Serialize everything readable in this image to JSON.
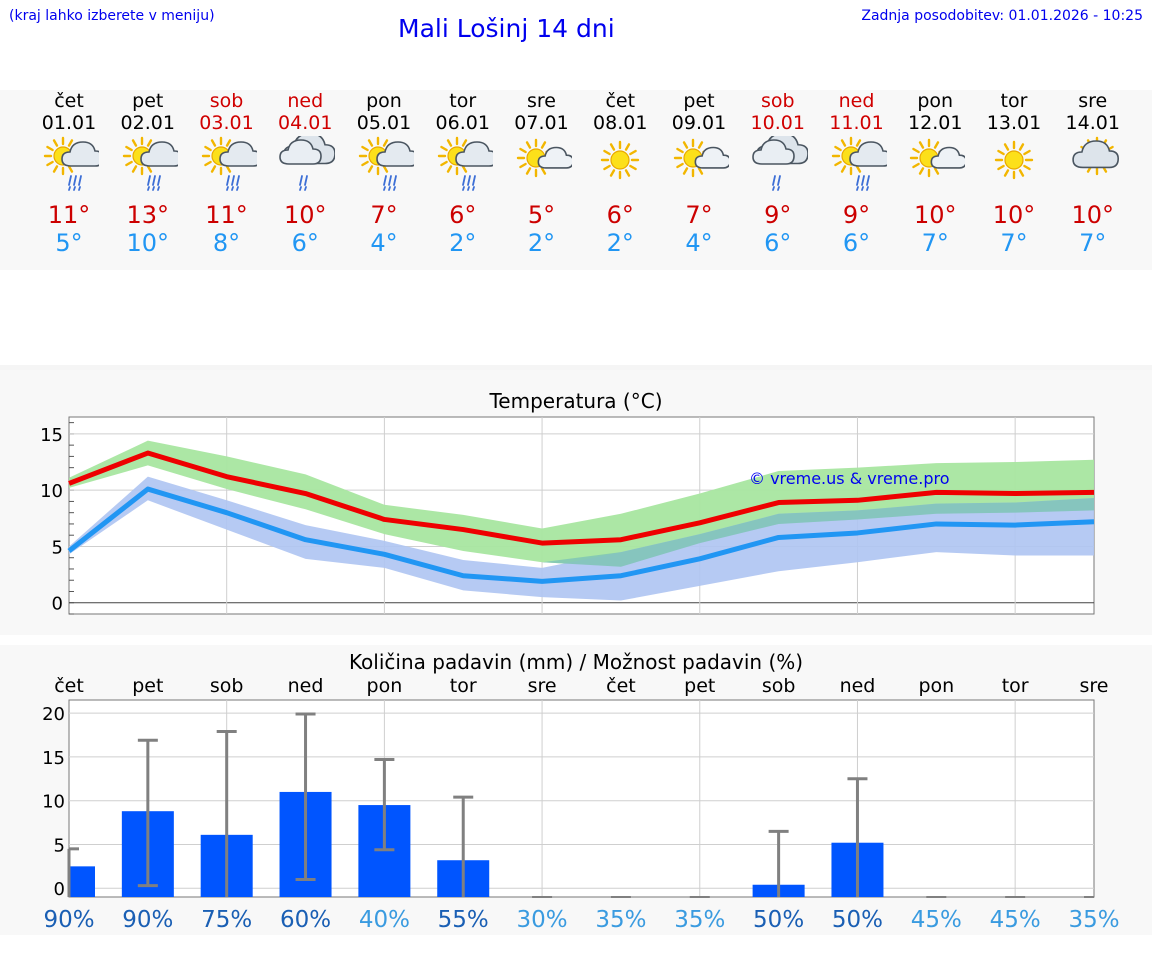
{
  "header": {
    "hint": "(kraj lahko izberete v meniju)",
    "title": "Mali Lošinj 14 dni",
    "updated": "Zadnja posodobitev: 01.01.2026 - 10:25"
  },
  "days": [
    {
      "name": "čet",
      "date": "01.01",
      "weekend": false,
      "icon": "sun-cloud-rain-icon",
      "max": "11°",
      "min": "5°"
    },
    {
      "name": "pet",
      "date": "02.01",
      "weekend": false,
      "icon": "sun-cloud-rain-icon",
      "max": "13°",
      "min": "10°"
    },
    {
      "name": "sob",
      "date": "03.01",
      "weekend": true,
      "icon": "sun-cloud-rain-icon",
      "max": "11°",
      "min": "8°"
    },
    {
      "name": "ned",
      "date": "04.01",
      "weekend": true,
      "icon": "cloud-rain-icon",
      "max": "10°",
      "min": "6°"
    },
    {
      "name": "pon",
      "date": "05.01",
      "weekend": false,
      "icon": "sun-cloud-rain-icon",
      "max": "7°",
      "min": "4°"
    },
    {
      "name": "tor",
      "date": "06.01",
      "weekend": false,
      "icon": "sun-cloud-rain-icon",
      "max": "6°",
      "min": "2°"
    },
    {
      "name": "sre",
      "date": "07.01",
      "weekend": false,
      "icon": "sun-small-cloud-icon",
      "max": "5°",
      "min": "2°"
    },
    {
      "name": "čet",
      "date": "08.01",
      "weekend": false,
      "icon": "sun-icon",
      "max": "6°",
      "min": "2°"
    },
    {
      "name": "pet",
      "date": "09.01",
      "weekend": false,
      "icon": "sun-small-cloud-icon",
      "max": "7°",
      "min": "4°"
    },
    {
      "name": "sob",
      "date": "10.01",
      "weekend": true,
      "icon": "cloud-rain-icon",
      "max": "9°",
      "min": "6°"
    },
    {
      "name": "ned",
      "date": "11.01",
      "weekend": true,
      "icon": "sun-cloud-rain-icon",
      "max": "9°",
      "min": "6°"
    },
    {
      "name": "pon",
      "date": "12.01",
      "weekend": false,
      "icon": "sun-small-cloud-icon",
      "max": "10°",
      "min": "7°"
    },
    {
      "name": "tor",
      "date": "13.01",
      "weekend": false,
      "icon": "sun-icon",
      "max": "10°",
      "min": "7°"
    },
    {
      "name": "sre",
      "date": "14.01",
      "weekend": false,
      "icon": "sun-cloud-icon",
      "max": "10°",
      "min": "7°"
    }
  ],
  "colors": {
    "max_line": "#ee0000",
    "min_line": "#2196f3",
    "max_band": "#a8e6a0",
    "min_band": "#aec4f2",
    "overlap_band": "#7fc4b6",
    "bar": "#0055ff",
    "whisker": "#808080",
    "pct_dark": "#1a5fb4",
    "pct_light": "#3a9be0"
  },
  "chart_data": [
    {
      "type": "line",
      "title": "Temperatura (°C)",
      "watermark": "© vreme.us & vreme.pro",
      "ylim": [
        -1,
        16.5
      ],
      "yticks": [
        0,
        5,
        10,
        15
      ],
      "x": [
        0,
        1,
        2,
        3,
        4,
        5,
        6,
        7,
        8,
        9,
        10,
        11,
        12,
        13
      ],
      "series": [
        {
          "name": "max",
          "values": [
            10.6,
            13.3,
            11.2,
            9.7,
            7.4,
            6.5,
            5.3,
            5.6,
            7.1,
            8.9,
            9.1,
            9.8,
            9.7,
            9.8
          ],
          "band_low": [
            10.2,
            12.2,
            10.1,
            8.3,
            6.1,
            4.6,
            3.6,
            3.2,
            5.3,
            7.0,
            7.4,
            7.9,
            8.0,
            8.2
          ],
          "band_high": [
            11.1,
            14.4,
            13.0,
            11.4,
            8.7,
            7.8,
            6.6,
            7.9,
            9.7,
            11.7,
            12.0,
            12.4,
            12.5,
            12.7
          ]
        },
        {
          "name": "min",
          "values": [
            4.6,
            10.1,
            8.0,
            5.6,
            4.3,
            2.4,
            1.9,
            2.4,
            3.9,
            5.8,
            6.2,
            7.0,
            6.9,
            7.2
          ],
          "band_low": [
            4.3,
            9.1,
            6.5,
            3.9,
            3.1,
            1.1,
            0.5,
            0.2,
            1.5,
            2.8,
            3.6,
            4.5,
            4.2,
            4.2
          ],
          "band_high": [
            5.0,
            11.2,
            9.1,
            6.9,
            5.5,
            3.8,
            3.1,
            4.5,
            6.1,
            7.9,
            8.2,
            8.8,
            8.9,
            9.3
          ]
        }
      ]
    },
    {
      "type": "bar",
      "title": "Količina padavin (mm) / Možnost padavin (%)",
      "ylim": [
        -1,
        21.5
      ],
      "yticks": [
        0,
        5,
        10,
        15,
        20
      ],
      "categories": [
        "čet",
        "pet",
        "sob",
        "ned",
        "pon",
        "tor",
        "sre",
        "čet",
        "pet",
        "sob",
        "ned",
        "pon",
        "tor",
        "sre"
      ],
      "values": [
        2.5,
        8.8,
        6.1,
        11.0,
        9.5,
        3.2,
        0,
        0,
        0,
        0.4,
        5.2,
        0,
        0,
        0
      ],
      "whisker_low": [
        0,
        0.3,
        0,
        1.0,
        4.4,
        0,
        0,
        0,
        0,
        0,
        0,
        0,
        0,
        0
      ],
      "whisker_high": [
        4.5,
        16.9,
        17.9,
        19.9,
        14.7,
        10.4,
        0,
        0,
        0,
        6.5,
        12.5,
        0,
        0,
        0
      ],
      "probabilities": [
        "90%",
        "90%",
        "75%",
        "60%",
        "40%",
        "55%",
        "30%",
        "35%",
        "35%",
        "50%",
        "50%",
        "45%",
        "45%",
        "35%"
      ],
      "probability_strong": [
        true,
        true,
        true,
        true,
        false,
        true,
        false,
        false,
        false,
        true,
        true,
        false,
        false,
        false
      ]
    }
  ]
}
